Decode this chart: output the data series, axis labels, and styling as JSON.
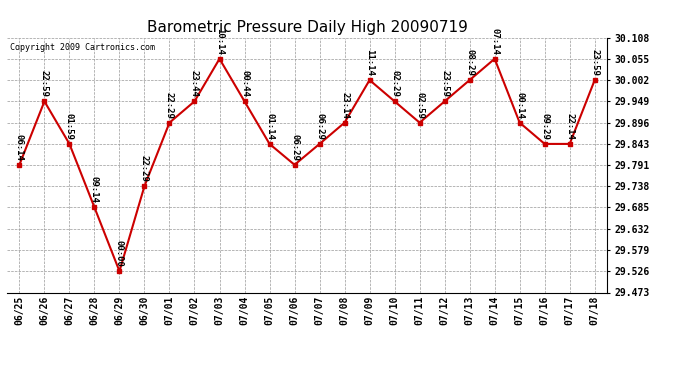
{
  "title": "Barometric Pressure Daily High 20090719",
  "copyright": "Copyright 2009 Cartronics.com",
  "x_labels": [
    "06/25",
    "06/26",
    "06/27",
    "06/28",
    "06/29",
    "06/30",
    "07/01",
    "07/02",
    "07/03",
    "07/04",
    "07/05",
    "07/06",
    "07/07",
    "07/08",
    "07/09",
    "07/10",
    "07/11",
    "07/12",
    "07/13",
    "07/14",
    "07/15",
    "07/16",
    "07/17",
    "07/18"
  ],
  "x_values": [
    0,
    1,
    2,
    3,
    4,
    5,
    6,
    7,
    8,
    9,
    10,
    11,
    12,
    13,
    14,
    15,
    16,
    17,
    18,
    19,
    20,
    21,
    22,
    23
  ],
  "y_values": [
    29.791,
    29.949,
    29.843,
    29.685,
    29.526,
    29.738,
    29.896,
    29.949,
    30.055,
    29.949,
    29.843,
    29.791,
    29.843,
    29.896,
    30.002,
    29.949,
    29.896,
    29.949,
    30.002,
    30.055,
    29.896,
    29.843,
    29.843,
    30.002
  ],
  "point_labels": [
    "06:14",
    "22:59",
    "01:59",
    "09:14",
    "00:00",
    "22:29",
    "22:29",
    "23:44",
    "10:14",
    "00:44",
    "01:14",
    "06:29",
    "06:29",
    "23:14",
    "11:14",
    "02:29",
    "02:59",
    "23:59",
    "08:29",
    "07:14",
    "00:14",
    "09:29",
    "22:14",
    "23:59"
  ],
  "ylim_min": 29.473,
  "ylim_max": 30.108,
  "ytick_values": [
    29.473,
    29.526,
    29.579,
    29.632,
    29.685,
    29.738,
    29.791,
    29.843,
    29.896,
    29.949,
    30.002,
    30.055,
    30.108
  ],
  "line_color": "#cc0000",
  "marker_color": "#cc0000",
  "bg_color": "#ffffff",
  "grid_color": "#999999",
  "title_fontsize": 11,
  "label_fontsize": 7,
  "point_label_fontsize": 6.5
}
